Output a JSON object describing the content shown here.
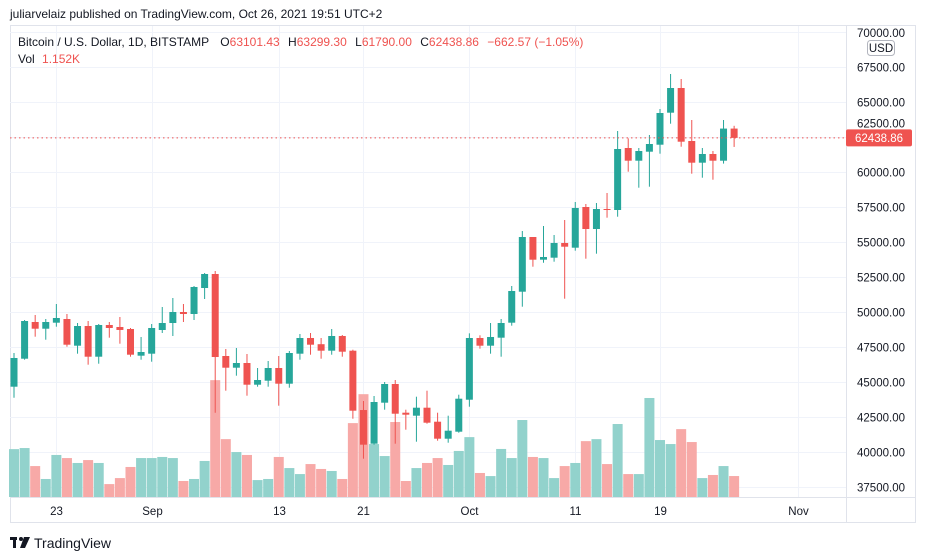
{
  "publisher_line": "juliarvelaiz published on TradingView.com, Oct 26, 2021 19:51 UTC+2",
  "footer": {
    "logo_text": "TradingView"
  },
  "legend": {
    "symbol": "Bitcoin / U.S. Dollar, 1D, BITSTAMP",
    "o_label": "O",
    "o_value": "63101.43",
    "h_label": "H",
    "h_value": "63299.30",
    "l_label": "L",
    "l_value": "61790.00",
    "c_label": "C",
    "c_value": "62438.86",
    "change": "−662.57 (−1.05%)",
    "vol_label": "Vol",
    "vol_value": "1.152K"
  },
  "price_axis": {
    "currency": "USD",
    "last_price_label": "62438.86"
  },
  "colors": {
    "up": "#26a69a",
    "down": "#ef5350",
    "up_volume": "#92d2cc",
    "down_volume": "#f7a9a7",
    "grid": "#f0f3fa"
  },
  "chart_data": {
    "type": "candlestick",
    "title": "",
    "ylim": [
      37500,
      70000
    ],
    "y_ticks": [
      "70000.00",
      "67500.00",
      "65000.00",
      "62500.00",
      "60000.00",
      "57500.00",
      "55000.00",
      "52500.00",
      "50000.00",
      "47500.00",
      "45000.00",
      "42500.00",
      "40000.00",
      "37500.00"
    ],
    "x_ticks": [
      {
        "label": "23",
        "date": "2021-08-23"
      },
      {
        "label": "Sep",
        "date": "2021-09-01"
      },
      {
        "label": "13",
        "date": "2021-09-13"
      },
      {
        "label": "21",
        "date": "2021-09-21"
      },
      {
        "label": "Oct",
        "date": "2021-10-01"
      },
      {
        "label": "11",
        "date": "2021-10-11"
      },
      {
        "label": "19",
        "date": "2021-10-19"
      },
      {
        "label": "Nov",
        "date": "2021-11-01"
      }
    ],
    "last_price": 62438.86,
    "grid": true,
    "volume_unit": "K",
    "columns": [
      "date",
      "open",
      "high",
      "low",
      "close",
      "volume"
    ],
    "candles": [
      [
        "2021-08-19",
        44664,
        47071,
        43879,
        46714,
        2.63
      ],
      [
        "2021-08-20",
        46664,
        49429,
        46593,
        49357,
        2.69
      ],
      [
        "2021-08-21",
        49286,
        49786,
        48236,
        48807,
        1.7
      ],
      [
        "2021-08-22",
        48807,
        49500,
        48021,
        49286,
        0.99
      ],
      [
        "2021-08-23",
        49236,
        50571,
        48950,
        49571,
        2.31
      ],
      [
        "2021-08-24",
        49500,
        49857,
        47521,
        47664,
        2.14
      ],
      [
        "2021-08-25",
        47593,
        49214,
        47022,
        49000,
        1.87
      ],
      [
        "2021-08-26",
        49000,
        49357,
        46236,
        46807,
        2.03
      ],
      [
        "2021-08-27",
        46807,
        49143,
        46307,
        49072,
        1.87
      ],
      [
        "2021-08-28",
        49072,
        49286,
        48165,
        48858,
        0.71
      ],
      [
        "2021-08-29",
        48929,
        49643,
        47736,
        48717,
        1.04
      ],
      [
        "2021-08-30",
        48786,
        48858,
        46807,
        46950,
        1.65
      ],
      [
        "2021-08-31",
        46879,
        48215,
        46593,
        47143,
        2.14
      ],
      [
        "2021-09-01",
        47022,
        49143,
        46450,
        48858,
        2.14
      ],
      [
        "2021-09-02",
        48715,
        50357,
        48501,
        49214,
        2.2
      ],
      [
        "2021-09-03",
        49214,
        51000,
        48286,
        50000,
        2.14
      ],
      [
        "2021-09-04",
        50000,
        50571,
        49286,
        49857,
        0.88
      ],
      [
        "2021-09-05",
        49857,
        51857,
        49429,
        51786,
        0.99
      ],
      [
        "2021-09-06",
        51714,
        52786,
        50929,
        52714,
        1.98
      ],
      [
        "2021-09-07",
        52714,
        52929,
        42807,
        46785,
        6.42
      ],
      [
        "2021-09-08",
        46857,
        47357,
        44379,
        46021,
        3.18
      ],
      [
        "2021-09-09",
        46021,
        47429,
        45450,
        46357,
        2.47
      ],
      [
        "2021-09-10",
        46357,
        47000,
        44021,
        44807,
        2.31
      ],
      [
        "2021-09-11",
        44807,
        46000,
        44664,
        45143,
        0.93
      ],
      [
        "2021-09-12",
        45093,
        46500,
        44664,
        46000,
        0.99
      ],
      [
        "2021-09-13",
        46000,
        46857,
        43307,
        44879,
        2.2
      ],
      [
        "2021-09-14",
        44879,
        47214,
        44593,
        47071,
        1.59
      ],
      [
        "2021-09-15",
        47022,
        48429,
        46593,
        48143,
        1.26
      ],
      [
        "2021-09-16",
        48143,
        48501,
        46950,
        47664,
        1.81
      ],
      [
        "2021-09-17",
        47700,
        48143,
        46664,
        47236,
        1.54
      ],
      [
        "2021-09-18",
        47236,
        48786,
        46950,
        48286,
        1.43
      ],
      [
        "2021-09-19",
        48286,
        48358,
        46807,
        47164,
        0.99
      ],
      [
        "2021-09-20",
        47236,
        47307,
        42378,
        42950,
        4.06
      ],
      [
        "2021-09-21",
        42998,
        43643,
        39522,
        40522,
        5.65
      ],
      [
        "2021-09-22",
        40593,
        44000,
        40522,
        43571,
        2.91
      ],
      [
        "2021-09-23",
        43522,
        45000,
        43022,
        44857,
        2.25
      ],
      [
        "2021-09-24",
        44857,
        45143,
        40593,
        42735,
        4.12
      ],
      [
        "2021-09-25",
        42807,
        43022,
        41593,
        42664,
        0.88
      ],
      [
        "2021-09-26",
        42593,
        43950,
        40736,
        43164,
        1.59
      ],
      [
        "2021-09-27",
        43164,
        44379,
        42022,
        42093,
        1.87
      ],
      [
        "2021-09-28",
        42164,
        42807,
        40807,
        40950,
        2.14
      ],
      [
        "2021-09-29",
        40950,
        42593,
        40664,
        41522,
        1.76
      ],
      [
        "2021-09-30",
        41450,
        44093,
        41379,
        43807,
        2.53
      ],
      [
        "2021-10-01",
        43735,
        48477,
        43235,
        48143,
        3.29
      ],
      [
        "2021-10-02",
        48143,
        48336,
        47379,
        47593,
        1.32
      ],
      [
        "2021-10-03",
        47593,
        49214,
        47022,
        48215,
        1.15
      ],
      [
        "2021-10-04",
        48165,
        49500,
        46807,
        49214,
        2.64
      ],
      [
        "2021-10-05",
        49236,
        51857,
        49022,
        51500,
        2.14
      ],
      [
        "2021-10-06",
        51450,
        55786,
        50379,
        55357,
        4.23
      ],
      [
        "2021-10-07",
        55357,
        55357,
        53236,
        53736,
        2.2
      ],
      [
        "2021-10-08",
        53736,
        56143,
        53522,
        53929,
        2.14
      ],
      [
        "2021-10-09",
        53879,
        55500,
        53593,
        54929,
        1.04
      ],
      [
        "2021-10-10",
        54929,
        56572,
        50950,
        54664,
        1.7
      ],
      [
        "2021-10-11",
        54593,
        57858,
        54379,
        57429,
        1.87
      ],
      [
        "2021-10-12",
        57500,
        57714,
        53808,
        55928,
        3.07
      ],
      [
        "2021-10-13",
        55928,
        57786,
        54165,
        57357,
        3.18
      ],
      [
        "2021-10-14",
        57357,
        58500,
        56736,
        57286,
        1.81
      ],
      [
        "2021-10-15",
        57286,
        62929,
        56807,
        61643,
        4.01
      ],
      [
        "2021-10-16",
        61714,
        62407,
        60022,
        60807,
        1.26
      ],
      [
        "2021-10-17",
        60807,
        61714,
        58879,
        61500,
        1.26
      ],
      [
        "2021-10-18",
        61450,
        62643,
        58950,
        62000,
        5.44
      ],
      [
        "2021-10-19",
        61950,
        64500,
        61307,
        64214,
        3.13
      ],
      [
        "2021-10-20",
        64236,
        67000,
        63450,
        66000,
        2.91
      ],
      [
        "2021-10-21",
        66000,
        66643,
        61807,
        62164,
        3.73
      ],
      [
        "2021-10-22",
        62214,
        63715,
        59879,
        60665,
        3.02
      ],
      [
        "2021-10-23",
        60665,
        61714,
        59593,
        61286,
        1.04
      ],
      [
        "2021-10-24",
        61286,
        61500,
        59450,
        60807,
        1.21
      ],
      [
        "2021-10-25",
        60807,
        63715,
        60600,
        63101.43,
        1.7
      ],
      [
        "2021-10-26",
        63101.43,
        63299.3,
        61790.0,
        62438.86,
        1.152
      ]
    ]
  }
}
